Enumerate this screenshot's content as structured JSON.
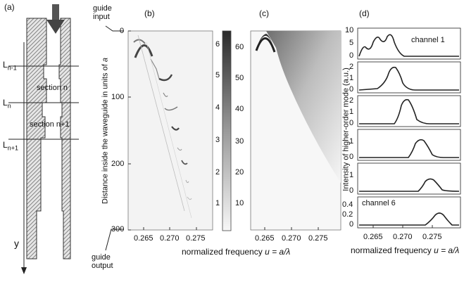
{
  "panels": {
    "a": "(a)",
    "b": "(b)",
    "c": "(c)",
    "d": "(d)"
  },
  "panel_a": {
    "guide_input": [
      "guide",
      "input"
    ],
    "guide_output": [
      "guide",
      "output"
    ],
    "section_labels": [
      "L",
      "section n",
      "L",
      "section n+1",
      "L"
    ],
    "L_labels": [
      {
        "base": "L",
        "sub": "n-1"
      },
      {
        "base": "L",
        "sub": "n"
      },
      {
        "base": "L",
        "sub": "n+1"
      }
    ],
    "section_n": "section n",
    "section_n1": "section n+1",
    "axis_y": "y"
  },
  "panel_b": {
    "ylabel": "Distance inside the waveguide in units of ",
    "ylabel_var": "a",
    "yticks": [
      "0",
      "100",
      "200",
      "300"
    ],
    "xticks": [
      "0.265",
      "0.270",
      "0.275"
    ]
  },
  "colorbar": {
    "left_ticks": [
      "6",
      "5",
      "4",
      "3",
      "2",
      "1"
    ],
    "right_ticks": [
      "60",
      "50",
      "40",
      "30",
      "20",
      "10"
    ]
  },
  "panel_c": {
    "xticks": [
      "0.265",
      "0.270",
      "0.275"
    ]
  },
  "shared_xlabel": {
    "text": "normalized frequency ",
    "var": "u = a/λ"
  },
  "panel_d": {
    "ylabel": "Intensity of higher-order mode (a.u.)",
    "channel1": "channel 1",
    "channel6": "channel 6",
    "row1_yticks": [
      "10",
      "5",
      "0"
    ],
    "row2_yticks": [
      "2",
      "1",
      "0"
    ],
    "row3_yticks": [
      "2",
      "1",
      "0"
    ],
    "row4_yticks": [
      "1",
      "0"
    ],
    "row5_yticks": [
      "1",
      "0"
    ],
    "row6_yticks": [
      "0.4",
      "0.2",
      "0"
    ],
    "xticks": [
      "0.265",
      "0.270",
      "0.275"
    ],
    "xlabel": "normalized frequency ",
    "xlabel_var": "u = a/λ"
  },
  "colors": {
    "hatch": "#777777",
    "map_bg": "#f2f2f2",
    "dark": "#222222"
  }
}
